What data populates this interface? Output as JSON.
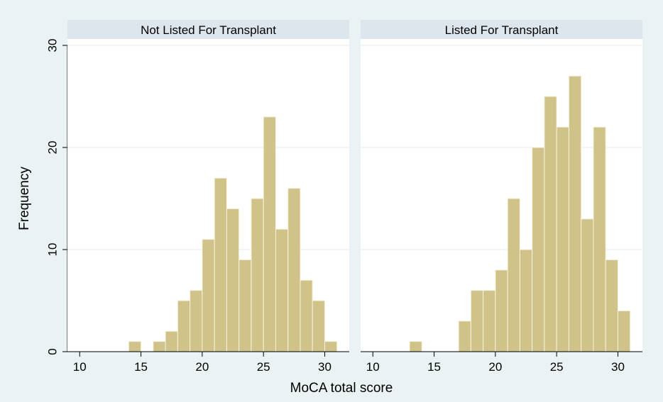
{
  "chart_data": {
    "type": "bar",
    "xlabel": "MoCA total score",
    "ylabel": "Frequency",
    "ylim": [
      0,
      30
    ],
    "yticks": [
      0,
      10,
      20,
      30
    ],
    "xlim": [
      9,
      32
    ],
    "xticks": [
      10,
      15,
      20,
      25,
      30
    ],
    "bin_width": 1,
    "grid": true,
    "bar_color": "#cfc38a",
    "bar_edge_color": "#f7f2dc",
    "panel_header_color": "#dde6ec",
    "background_color": "#eaf2f3",
    "panels": [
      {
        "title": "Not Listed For Transplant",
        "bins": [
          {
            "x": 14,
            "value": 1
          },
          {
            "x": 16,
            "value": 1
          },
          {
            "x": 17,
            "value": 2
          },
          {
            "x": 18,
            "value": 5
          },
          {
            "x": 19,
            "value": 6
          },
          {
            "x": 20,
            "value": 11
          },
          {
            "x": 21,
            "value": 17
          },
          {
            "x": 22,
            "value": 14
          },
          {
            "x": 23,
            "value": 9
          },
          {
            "x": 24,
            "value": 15
          },
          {
            "x": 25,
            "value": 23
          },
          {
            "x": 26,
            "value": 12
          },
          {
            "x": 27,
            "value": 16
          },
          {
            "x": 28,
            "value": 7
          },
          {
            "x": 29,
            "value": 5
          },
          {
            "x": 30,
            "value": 1
          }
        ]
      },
      {
        "title": "Listed For Transplant",
        "bins": [
          {
            "x": 13,
            "value": 1
          },
          {
            "x": 17,
            "value": 3
          },
          {
            "x": 18,
            "value": 6
          },
          {
            "x": 19,
            "value": 6
          },
          {
            "x": 20,
            "value": 8
          },
          {
            "x": 21,
            "value": 15
          },
          {
            "x": 22,
            "value": 10
          },
          {
            "x": 23,
            "value": 20
          },
          {
            "x": 24,
            "value": 25
          },
          {
            "x": 25,
            "value": 22
          },
          {
            "x": 26,
            "value": 27
          },
          {
            "x": 27,
            "value": 13
          },
          {
            "x": 28,
            "value": 22
          },
          {
            "x": 29,
            "value": 9
          },
          {
            "x": 30,
            "value": 4
          }
        ]
      }
    ]
  }
}
